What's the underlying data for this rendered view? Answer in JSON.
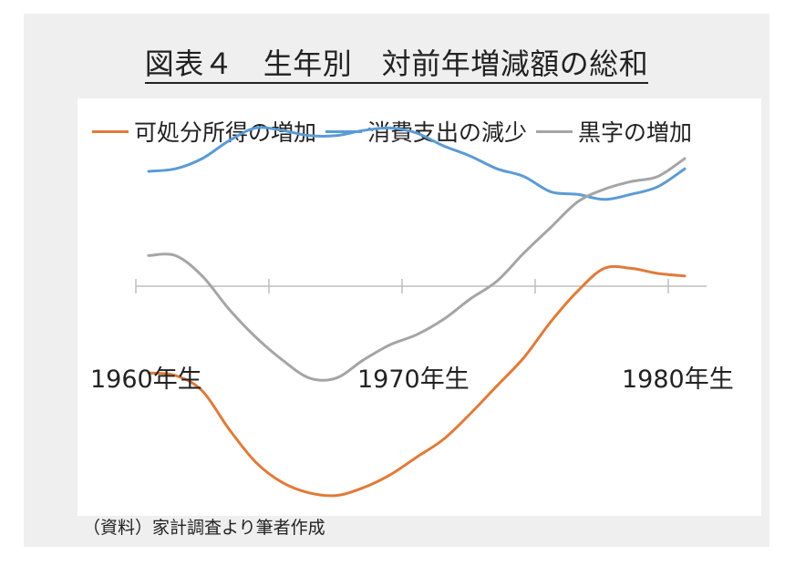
{
  "title": "図表４　生年別　対前年増減額の総和",
  "source": "（資料）家計調査より筆者作成",
  "chart_data": {
    "type": "line",
    "title": "図表４　生年別　対前年増減額の総和",
    "xlabel": "",
    "ylabel": "",
    "x_range": [
      1960,
      1980
    ],
    "x_ticks": [
      "1960年生",
      "1970年生",
      "1980年生"
    ],
    "x_tick_values": [
      1960,
      1970,
      1980
    ],
    "y_range": [
      -9,
      6
    ],
    "gridlines": false,
    "y_axis_visible": false,
    "legend_position": "top",
    "series": [
      {
        "name": "可処分所得の増加",
        "color": "#e07b39",
        "x": [
          1960,
          1961,
          1962,
          1963,
          1964,
          1965,
          1966,
          1967,
          1968,
          1969,
          1970,
          1971,
          1972,
          1973,
          1974,
          1975,
          1976,
          1977,
          1978,
          1979,
          1980
        ],
        "y": [
          -3.4,
          -3.5,
          -4.1,
          -5.6,
          -6.9,
          -7.7,
          -8.1,
          -8.2,
          -7.9,
          -7.4,
          -6.7,
          -6.0,
          -5.0,
          -3.9,
          -2.8,
          -1.4,
          -0.2,
          0.7,
          0.7,
          0.5,
          0.4
        ]
      },
      {
        "name": "消費支出の減少",
        "color": "#5b9bd5",
        "x": [
          1960,
          1961,
          1962,
          1963,
          1964,
          1965,
          1966,
          1967,
          1968,
          1969,
          1970,
          1971,
          1972,
          1973,
          1974,
          1975,
          1976,
          1977,
          1978,
          1979,
          1980
        ],
        "y": [
          4.5,
          4.6,
          5.0,
          5.7,
          6.2,
          6.1,
          5.9,
          5.9,
          6.1,
          6.2,
          6.0,
          5.5,
          5.1,
          4.6,
          4.3,
          3.7,
          3.6,
          3.4,
          3.6,
          3.9,
          4.6
        ]
      },
      {
        "name": "黒字の増加",
        "color": "#a5a5a5",
        "x": [
          1960,
          1961,
          1962,
          1963,
          1964,
          1965,
          1966,
          1967,
          1968,
          1969,
          1970,
          1971,
          1972,
          1973,
          1974,
          1975,
          1976,
          1977,
          1978,
          1979,
          1980
        ],
        "y": [
          1.2,
          1.2,
          0.4,
          -0.9,
          -2.0,
          -2.9,
          -3.6,
          -3.6,
          -2.9,
          -2.3,
          -1.9,
          -1.3,
          -0.5,
          0.2,
          1.3,
          2.3,
          3.3,
          3.8,
          4.1,
          4.3,
          5.0
        ]
      }
    ]
  }
}
